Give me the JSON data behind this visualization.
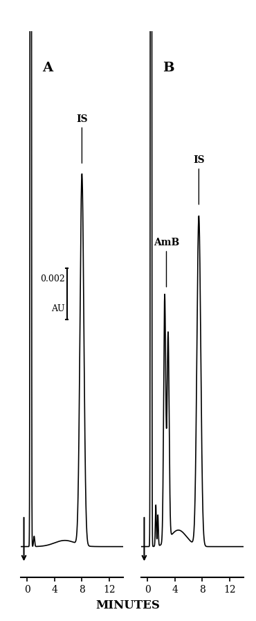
{
  "background_color": "#ffffff",
  "panel_A_label": "A",
  "panel_B_label": "B",
  "xlabel": "MINUTES",
  "xticks": [
    0,
    4,
    8,
    12
  ],
  "figsize": [
    3.7,
    8.96
  ],
  "dpi": 100,
  "scale_bar_label_top": "0.002",
  "scale_bar_label_bot": "AU"
}
